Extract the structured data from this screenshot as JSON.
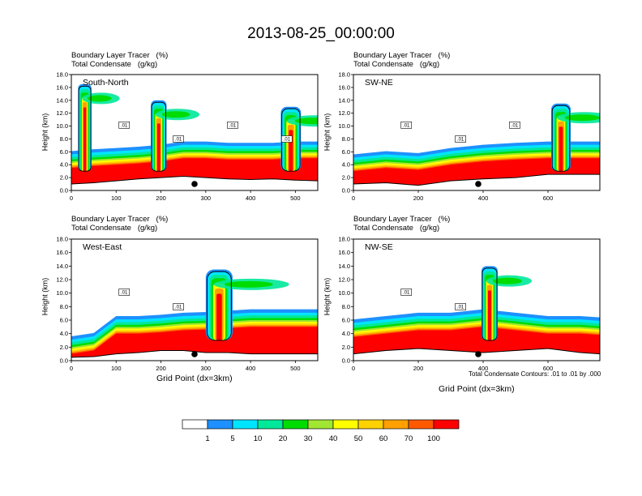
{
  "page_title": "2013-08-25_00:00:00",
  "chart_data": [
    {
      "type": "heatmap",
      "panel": "South-North",
      "caption": [
        "Boundary Layer Tracer   (%)",
        "Total Condensate   (g/kg)"
      ],
      "xlabel": "",
      "ylabel": "Height (km)",
      "xlim": [
        0,
        550
      ],
      "ylim": [
        0,
        18
      ],
      "xticks": [
        "0",
        "100",
        "200",
        "300",
        "400",
        "500"
      ],
      "yticks": [
        "0.0",
        "2.0",
        "4.0",
        "6.0",
        "8.0",
        "10.0",
        "12.0",
        "14.0",
        "16.0",
        "18.0"
      ],
      "terrain": [
        [
          0,
          1.0
        ],
        [
          50,
          1.2
        ],
        [
          100,
          1.5
        ],
        [
          150,
          1.8
        ],
        [
          200,
          2.0
        ],
        [
          250,
          2.2
        ],
        [
          300,
          2.0
        ],
        [
          350,
          1.8
        ],
        [
          400,
          1.7
        ],
        [
          450,
          1.8
        ],
        [
          500,
          1.6
        ],
        [
          550,
          1.5
        ]
      ],
      "bl_top": [
        [
          0,
          3.5
        ],
        [
          50,
          3.8
        ],
        [
          100,
          4.0
        ],
        [
          150,
          4.2
        ],
        [
          200,
          4.5
        ],
        [
          250,
          5.0
        ],
        [
          300,
          5.0
        ],
        [
          350,
          4.8
        ],
        [
          400,
          4.8
        ],
        [
          450,
          4.8
        ],
        [
          500,
          5.0
        ],
        [
          550,
          5.0
        ]
      ],
      "columns": [
        {
          "x": 30,
          "width": 30,
          "top": 16.5
        },
        {
          "x": 195,
          "width": 35,
          "top": 14.0
        },
        {
          "x": 490,
          "width": 45,
          "top": 13.0
        }
      ],
      "contour_labels": [
        ".01",
        ".01",
        ".01",
        ".01"
      ],
      "marker_x": 275
    },
    {
      "type": "heatmap",
      "panel": "SW-NE",
      "caption": [
        "Boundary Layer Tracer   (%)",
        "Total Condensate   (g/kg)"
      ],
      "xlabel": "",
      "ylabel": "Height (km)",
      "xlim": [
        0,
        760
      ],
      "ylim": [
        0,
        18
      ],
      "xticks": [
        "0",
        "200",
        "400",
        "600"
      ],
      "yticks": [
        "0.0",
        "2.0",
        "4.0",
        "6.0",
        "8.0",
        "10.0",
        "12.0",
        "14.0",
        "16.0",
        "18.0"
      ],
      "terrain": [
        [
          0,
          1.0
        ],
        [
          100,
          1.2
        ],
        [
          200,
          0.8
        ],
        [
          300,
          1.5
        ],
        [
          400,
          1.8
        ],
        [
          500,
          2.0
        ],
        [
          600,
          2.5
        ],
        [
          700,
          2.5
        ],
        [
          760,
          2.5
        ]
      ],
      "bl_top": [
        [
          0,
          3.0
        ],
        [
          100,
          3.5
        ],
        [
          200,
          3.2
        ],
        [
          300,
          4.0
        ],
        [
          400,
          4.5
        ],
        [
          500,
          4.8
        ],
        [
          600,
          5.0
        ],
        [
          700,
          5.0
        ],
        [
          760,
          5.0
        ]
      ],
      "columns": [
        {
          "x": 640,
          "width": 60,
          "top": 13.5
        }
      ],
      "contour_labels": [
        ".01",
        ".01",
        ".01"
      ],
      "marker_x": 385
    },
    {
      "type": "heatmap",
      "panel": "West-East",
      "caption": [
        "Boundary Layer Tracer   (%)",
        "Total Condensate   (g/kg)"
      ],
      "xlabel": "Grid Point (dx=3km)",
      "ylabel": "Height (km)",
      "xlim": [
        0,
        550
      ],
      "ylim": [
        0,
        18
      ],
      "xticks": [
        "0",
        "100",
        "200",
        "300",
        "400",
        "500"
      ],
      "yticks": [
        "0.0",
        "2.0",
        "4.0",
        "6.0",
        "8.0",
        "10.0",
        "12.0",
        "14.0",
        "16.0",
        "18.0"
      ],
      "terrain": [
        [
          0,
          0.5
        ],
        [
          50,
          0.6
        ],
        [
          100,
          1.0
        ],
        [
          150,
          1.2
        ],
        [
          200,
          1.5
        ],
        [
          250,
          1.5
        ],
        [
          300,
          1.2
        ],
        [
          350,
          1.2
        ],
        [
          400,
          1.0
        ],
        [
          450,
          1.0
        ],
        [
          500,
          1.0
        ],
        [
          550,
          1.0
        ]
      ],
      "bl_top": [
        [
          0,
          1.0
        ],
        [
          50,
          1.5
        ],
        [
          100,
          4.0
        ],
        [
          150,
          4.0
        ],
        [
          200,
          4.2
        ],
        [
          250,
          4.5
        ],
        [
          300,
          4.6
        ],
        [
          350,
          4.8
        ],
        [
          400,
          5.0
        ],
        [
          450,
          5.0
        ],
        [
          500,
          5.0
        ],
        [
          550,
          5.0
        ]
      ],
      "columns": [
        {
          "x": 330,
          "width": 60,
          "top": 13.5
        }
      ],
      "contour_labels": [
        ".01",
        ".01"
      ],
      "marker_x": 275
    },
    {
      "type": "heatmap",
      "panel": "NW-SE",
      "caption": [
        "Boundary Layer Tracer   (%)",
        "Total Condensate   (g/kg)"
      ],
      "xlabel": "Grid Point (dx=3km)",
      "ylabel": "Height (km)",
      "xlim": [
        0,
        760
      ],
      "ylim": [
        0,
        18
      ],
      "xticks": [
        "0",
        "200",
        "400",
        "600"
      ],
      "yticks": [
        "0.0",
        "2.0",
        "4.0",
        "6.0",
        "8.0",
        "10.0",
        "12.0",
        "14.0",
        "16.0",
        "18.0"
      ],
      "terrain": [
        [
          0,
          1.0
        ],
        [
          100,
          1.5
        ],
        [
          200,
          1.8
        ],
        [
          300,
          1.5
        ],
        [
          400,
          1.2
        ],
        [
          500,
          1.5
        ],
        [
          600,
          1.8
        ],
        [
          700,
          1.2
        ],
        [
          760,
          1.0
        ]
      ],
      "bl_top": [
        [
          0,
          3.5
        ],
        [
          100,
          4.0
        ],
        [
          200,
          4.5
        ],
        [
          300,
          4.5
        ],
        [
          400,
          5.0
        ],
        [
          500,
          4.5
        ],
        [
          600,
          4.0
        ],
        [
          700,
          4.0
        ],
        [
          760,
          3.8
        ]
      ],
      "columns": [
        {
          "x": 420,
          "width": 50,
          "top": 14.0
        }
      ],
      "contour_labels": [
        ".01",
        ".01"
      ],
      "marker_x": 385
    }
  ],
  "contour_note": "Total Condensate Contours: .01 to .01 by .000",
  "colorbar": {
    "labels": [
      "1",
      "5",
      "10",
      "20",
      "30",
      "40",
      "50",
      "60",
      "70",
      "100"
    ],
    "colors": [
      "#ffffff",
      "#1e90ff",
      "#00e5ff",
      "#00e89a",
      "#00dc00",
      "#a0e632",
      "#ffff00",
      "#ffd200",
      "#ffa000",
      "#ff5a00",
      "#ff0000"
    ]
  }
}
